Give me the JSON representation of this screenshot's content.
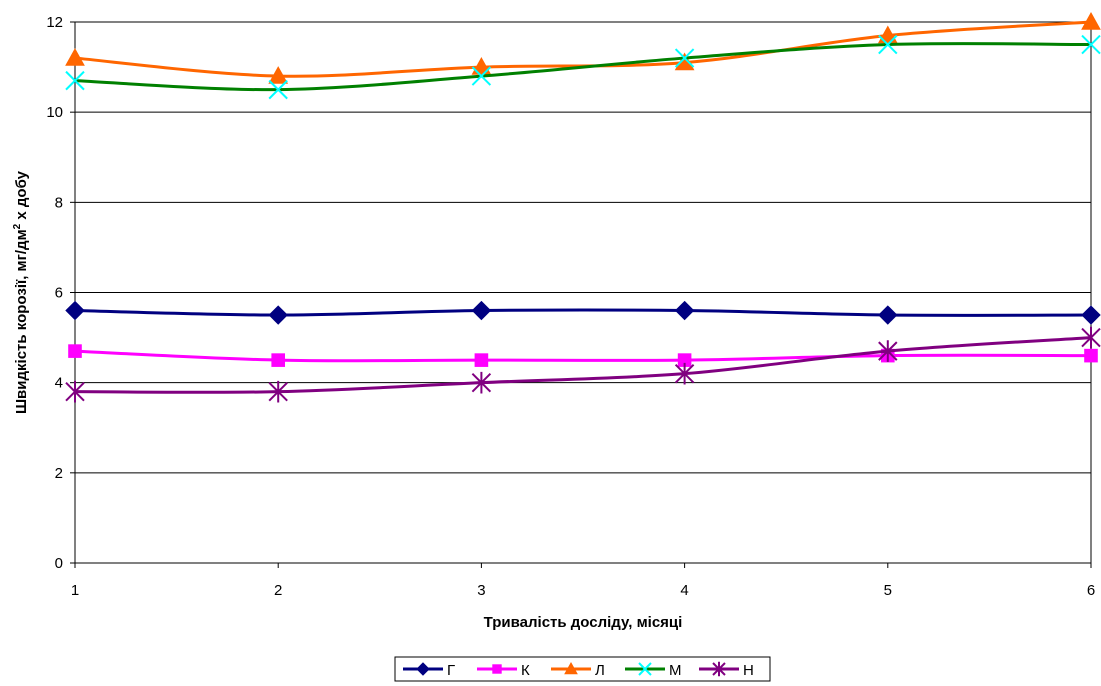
{
  "chart_data": {
    "type": "line",
    "x": [
      1,
      2,
      3,
      4,
      5,
      6
    ],
    "xlabel": "Тривалість досліду, місяці",
    "ylabel_main": "Швидкість корозії, мг/дм",
    "ylabel_sup": "2",
    "ylabel_tail": " х добу",
    "ylim": [
      0,
      12
    ],
    "yticks": [
      0,
      2,
      4,
      6,
      8,
      10,
      12
    ],
    "grid": "horizontal",
    "legend_position": "bottom",
    "series": [
      {
        "name": "Г",
        "color": "#000080",
        "marker": "diamond",
        "values": [
          5.6,
          5.5,
          5.6,
          5.6,
          5.5,
          5.5
        ]
      },
      {
        "name": "К",
        "color": "#FF00FF",
        "marker": "square",
        "values": [
          4.7,
          4.5,
          4.5,
          4.5,
          4.6,
          4.6
        ]
      },
      {
        "name": "Л",
        "color": "#FF6600",
        "marker": "triangle",
        "values": [
          11.2,
          10.8,
          11.0,
          11.1,
          11.7,
          12.0
        ]
      },
      {
        "name": "М",
        "color": "#008000",
        "marker": "x",
        "marker_color": "#00FFFF",
        "values": [
          10.7,
          10.5,
          10.8,
          11.2,
          11.5,
          11.5
        ]
      },
      {
        "name": "Н",
        "color": "#800080",
        "marker": "star",
        "values": [
          3.8,
          3.8,
          4.0,
          4.2,
          4.7,
          5.0
        ]
      }
    ]
  }
}
